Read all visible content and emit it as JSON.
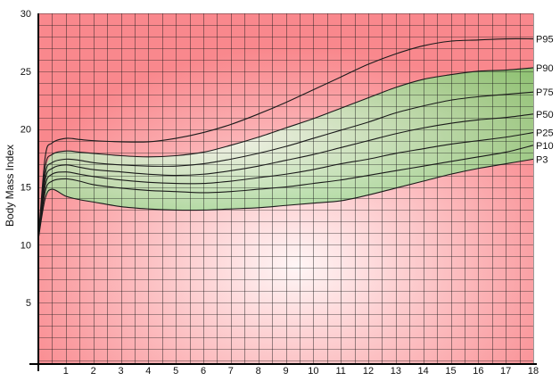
{
  "chart_data": {
    "type": "line",
    "title": "",
    "xlabel": "",
    "ylabel": "Body Mass Index",
    "xlim": [
      0,
      18
    ],
    "ylim": [
      0,
      30
    ],
    "x_ticks": [
      "1",
      "2",
      "3",
      "4",
      "5",
      "6",
      "7",
      "8",
      "9",
      "10",
      "11",
      "12",
      "13",
      "14",
      "15",
      "16",
      "17",
      "18"
    ],
    "y_ticks": [
      "5",
      "10",
      "15",
      "20",
      "25",
      "30"
    ],
    "grid": true,
    "minor_grid": {
      "x_step": 0.5,
      "y_step": 1
    },
    "background": "gradient",
    "colors": {
      "background_edge": "#f9888d",
      "background_center": "#fff6f6",
      "band_fill": "#7dcc6f",
      "band_center": "#f1fbef",
      "line": "#1a1a1a",
      "grid": "#1a1a1a"
    },
    "highlighted_band": {
      "lower": "P3",
      "upper": "P90"
    },
    "x": [
      0,
      0.25,
      0.5,
      1,
      1.5,
      2,
      3,
      4,
      5,
      6,
      7,
      8,
      9,
      10,
      11,
      12,
      13,
      14,
      15,
      16,
      17,
      18
    ],
    "series": [
      {
        "name": "P95",
        "values": [
          10.5,
          17.6,
          18.8,
          19.2,
          19.1,
          19.0,
          18.9,
          18.9,
          19.2,
          19.7,
          20.4,
          21.3,
          22.3,
          23.4,
          24.5,
          25.6,
          26.5,
          27.2,
          27.6,
          27.7,
          27.8,
          27.8
        ]
      },
      {
        "name": "P90",
        "values": [
          10.5,
          16.7,
          17.8,
          18.1,
          18.0,
          17.9,
          17.7,
          17.6,
          17.7,
          18.0,
          18.6,
          19.3,
          20.1,
          20.9,
          21.8,
          22.7,
          23.6,
          24.3,
          24.7,
          25.0,
          25.1,
          25.3
        ]
      },
      {
        "name": "P75",
        "values": [
          10.5,
          16.1,
          17.1,
          17.4,
          17.3,
          17.1,
          16.9,
          16.8,
          16.8,
          17.0,
          17.4,
          17.9,
          18.5,
          19.2,
          19.9,
          20.6,
          21.4,
          22.0,
          22.5,
          22.8,
          23.0,
          23.2
        ]
      },
      {
        "name": "P50",
        "values": [
          10.5,
          15.6,
          16.6,
          16.9,
          16.7,
          16.5,
          16.3,
          16.1,
          16.0,
          16.1,
          16.4,
          16.8,
          17.3,
          17.8,
          18.4,
          19.0,
          19.6,
          20.1,
          20.5,
          20.8,
          21.0,
          21.3
        ]
      },
      {
        "name": "P25",
        "values": [
          10.5,
          15.1,
          16.1,
          16.3,
          16.1,
          15.9,
          15.6,
          15.4,
          15.3,
          15.3,
          15.5,
          15.8,
          16.1,
          16.5,
          17.0,
          17.4,
          17.9,
          18.3,
          18.7,
          19.0,
          19.3,
          19.7
        ]
      },
      {
        "name": "P10",
        "values": [
          10.5,
          14.6,
          15.5,
          15.7,
          15.5,
          15.2,
          14.9,
          14.7,
          14.6,
          14.5,
          14.6,
          14.8,
          15.0,
          15.3,
          15.6,
          16.0,
          16.4,
          16.8,
          17.2,
          17.6,
          18.0,
          18.6
        ]
      },
      {
        "name": "P3",
        "values": [
          10.5,
          14.0,
          14.8,
          14.2,
          13.9,
          13.7,
          13.3,
          13.1,
          13.0,
          13.0,
          13.1,
          13.2,
          13.4,
          13.6,
          13.8,
          14.3,
          14.9,
          15.5,
          16.1,
          16.6,
          17.0,
          17.4
        ]
      }
    ]
  }
}
